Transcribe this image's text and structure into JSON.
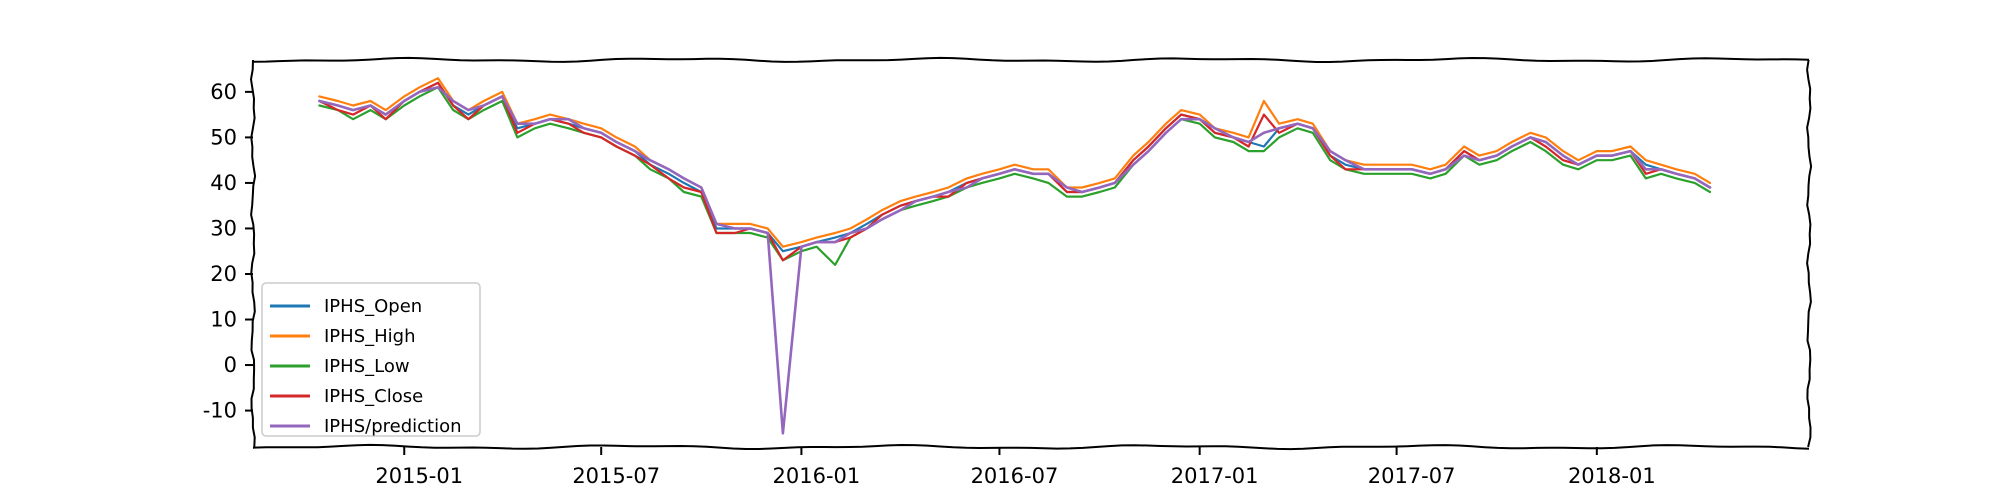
{
  "chart_data": {
    "type": "line",
    "title": "",
    "xlabel": "",
    "ylabel": "",
    "ylim": [
      -18,
      67
    ],
    "yticks": [
      -10,
      0,
      10,
      20,
      30,
      40,
      50,
      60
    ],
    "ytick_labels": [
      "-10",
      "0",
      "10",
      "20",
      "30",
      "40",
      "50",
      "60"
    ],
    "xlim": [
      "2014-08-15",
      "2018-07-15"
    ],
    "xticks": [
      "2015-01-01",
      "2015-07-01",
      "2016-01-01",
      "2016-07-01",
      "2017-01-01",
      "2017-07-01",
      "2018-01-01"
    ],
    "xtick_labels": [
      "2015-01",
      "2015-07",
      "2016-01",
      "2016-07",
      "2017-01",
      "2017-07",
      "2018-01"
    ],
    "grid": false,
    "legend_position": "lower-left",
    "x": [
      "2014-10-15",
      "2014-11-01",
      "2014-11-15",
      "2014-12-01",
      "2014-12-15",
      "2015-01-01",
      "2015-01-15",
      "2015-02-01",
      "2015-02-15",
      "2015-03-01",
      "2015-03-15",
      "2015-04-01",
      "2015-04-15",
      "2015-05-01",
      "2015-05-15",
      "2015-06-01",
      "2015-06-15",
      "2015-07-01",
      "2015-07-15",
      "2015-08-01",
      "2015-08-15",
      "2015-09-01",
      "2015-09-15",
      "2015-10-01",
      "2015-10-15",
      "2015-11-01",
      "2015-11-15",
      "2015-12-01",
      "2015-12-15",
      "2016-01-01",
      "2016-01-15",
      "2016-02-01",
      "2016-02-15",
      "2016-03-01",
      "2016-03-15",
      "2016-04-01",
      "2016-04-15",
      "2016-05-01",
      "2016-05-15",
      "2016-06-01",
      "2016-06-15",
      "2016-07-01",
      "2016-07-15",
      "2016-08-01",
      "2016-08-15",
      "2016-09-01",
      "2016-09-15",
      "2016-10-01",
      "2016-10-15",
      "2016-11-01",
      "2016-11-15",
      "2016-12-01",
      "2016-12-15",
      "2017-01-01",
      "2017-01-15",
      "2017-02-01",
      "2017-02-15",
      "2017-03-01",
      "2017-03-15",
      "2017-04-01",
      "2017-04-15",
      "2017-05-01",
      "2017-05-15",
      "2017-06-01",
      "2017-06-15",
      "2017-07-01",
      "2017-07-15",
      "2017-08-01",
      "2017-08-15",
      "2017-09-01",
      "2017-09-15",
      "2017-10-01",
      "2017-10-15",
      "2017-11-01",
      "2017-11-15",
      "2017-12-01",
      "2017-12-15",
      "2018-01-01",
      "2018-01-15",
      "2018-02-01",
      "2018-02-15",
      "2018-03-01",
      "2018-03-15",
      "2018-04-01",
      "2018-04-15"
    ],
    "series": [
      {
        "name": "IPHS_Open",
        "color": "#1f77b4",
        "values": [
          58,
          57,
          56,
          57,
          55,
          58,
          60,
          62,
          57,
          55,
          57,
          59,
          52,
          53,
          54,
          53,
          52,
          51,
          49,
          47,
          44,
          42,
          40,
          38,
          30,
          30,
          30,
          29,
          25,
          26,
          27,
          28,
          29,
          31,
          33,
          35,
          36,
          37,
          38,
          40,
          41,
          42,
          43,
          42,
          42,
          38,
          38,
          39,
          40,
          45,
          48,
          52,
          55,
          54,
          51,
          50,
          49,
          48,
          52,
          53,
          52,
          46,
          44,
          43,
          43,
          43,
          43,
          42,
          43,
          47,
          45,
          46,
          48,
          50,
          49,
          46,
          44,
          46,
          46,
          47,
          44,
          43,
          42,
          41,
          39
        ]
      },
      {
        "name": "IPHS_High",
        "color": "#ff7f0e",
        "values": [
          59,
          58,
          57,
          58,
          56,
          59,
          61,
          63,
          58,
          56,
          58,
          60,
          53,
          54,
          55,
          54,
          53,
          52,
          50,
          48,
          45,
          43,
          41,
          39,
          31,
          31,
          31,
          30,
          26,
          27,
          28,
          29,
          30,
          32,
          34,
          36,
          37,
          38,
          39,
          41,
          42,
          43,
          44,
          43,
          43,
          39,
          39,
          40,
          41,
          46,
          49,
          53,
          56,
          55,
          52,
          51,
          50,
          58,
          53,
          54,
          53,
          47,
          45,
          44,
          44,
          44,
          44,
          43,
          44,
          48,
          46,
          47,
          49,
          51,
          50,
          47,
          45,
          47,
          47,
          48,
          45,
          44,
          43,
          42,
          40
        ]
      },
      {
        "name": "IPHS_Low",
        "color": "#2ca02c",
        "values": [
          57,
          56,
          54,
          56,
          54,
          57,
          59,
          61,
          56,
          54,
          56,
          58,
          50,
          52,
          53,
          52,
          51,
          50,
          48,
          46,
          43,
          41,
          38,
          37,
          29,
          29,
          29,
          28,
          23,
          25,
          26,
          22,
          28,
          30,
          32,
          34,
          35,
          36,
          37,
          39,
          40,
          41,
          42,
          41,
          40,
          37,
          37,
          38,
          39,
          44,
          47,
          51,
          54,
          53,
          50,
          49,
          47,
          47,
          50,
          52,
          51,
          45,
          43,
          42,
          42,
          42,
          42,
          41,
          42,
          46,
          44,
          45,
          47,
          49,
          47,
          44,
          43,
          45,
          45,
          46,
          41,
          42,
          41,
          40,
          38
        ]
      },
      {
        "name": "IPHS_Close",
        "color": "#d62728",
        "values": [
          58,
          56,
          55,
          57,
          54,
          58,
          60,
          62,
          57,
          54,
          57,
          59,
          51,
          53,
          54,
          53,
          51,
          50,
          48,
          46,
          44,
          41,
          39,
          38,
          29,
          29,
          30,
          29,
          23,
          26,
          27,
          27,
          28,
          30,
          33,
          35,
          36,
          37,
          37,
          40,
          41,
          42,
          43,
          42,
          42,
          38,
          38,
          39,
          40,
          45,
          48,
          52,
          55,
          54,
          51,
          50,
          48,
          55,
          51,
          53,
          52,
          46,
          43,
          43,
          43,
          43,
          43,
          42,
          43,
          47,
          45,
          46,
          48,
          50,
          48,
          45,
          44,
          46,
          46,
          47,
          42,
          43,
          42,
          41,
          39
        ]
      },
      {
        "name": "IPHS/prediction",
        "color": "#9467bd",
        "values": [
          58,
          57,
          56,
          57,
          55,
          58,
          60,
          61,
          58,
          56,
          57,
          59,
          53,
          53,
          54,
          54,
          52,
          51,
          49,
          47,
          45,
          43,
          41,
          39,
          31,
          30,
          30,
          29,
          -15,
          26,
          27,
          27,
          29,
          30,
          32,
          34,
          36,
          37,
          38,
          39,
          41,
          42,
          43,
          42,
          42,
          39,
          38,
          39,
          40,
          44,
          47,
          51,
          54,
          54,
          52,
          50,
          49,
          51,
          52,
          53,
          52,
          47,
          45,
          43,
          43,
          43,
          43,
          42,
          43,
          46,
          45,
          46,
          48,
          50,
          49,
          46,
          44,
          46,
          46,
          47,
          43,
          43,
          42,
          41,
          39
        ]
      }
    ]
  }
}
